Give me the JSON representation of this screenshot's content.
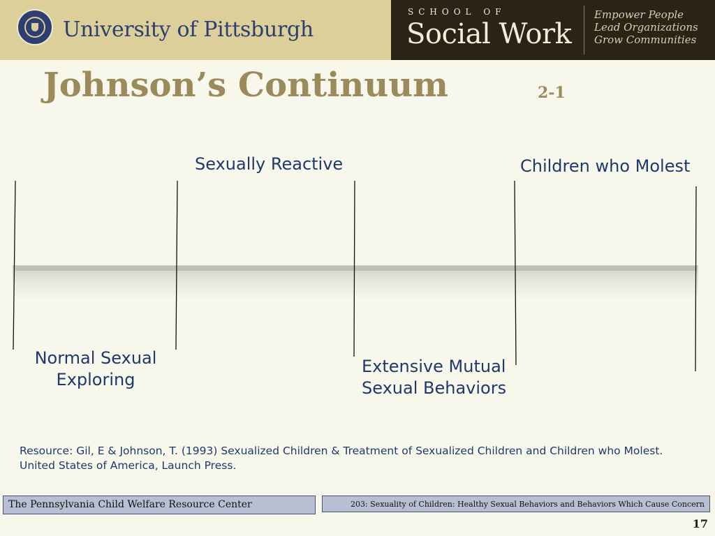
{
  "header": {
    "university": "University of Pittsburgh",
    "school_prefix": "SCHOOL OF",
    "school_name": "Social Work",
    "tagline": [
      "Empower People",
      "Lead Organizations",
      "Grow Communities"
    ]
  },
  "slide": {
    "title": "Johnson’s Continuum",
    "code": "2-1",
    "page_number": "17"
  },
  "continuum": {
    "labels": {
      "normal": [
        "Normal Sexual",
        "Exploring"
      ],
      "reactive": "Sexually Reactive",
      "mutual": [
        "Extensive Mutual",
        "Sexual Behaviors"
      ],
      "molest": "Children who Molest"
    }
  },
  "resource": {
    "line1": "Resource:  Gil, E & Johnson, T. (1993) Sexualized Children & Treatment of Sexualized Children and Children who Molest.",
    "line2": "United States of America, Launch Press."
  },
  "footer": {
    "left": "The Pennsylvania Child Welfare Resource Center",
    "right": "203: Sexuality of Children: Healthy Sexual Behaviors and Behaviors Which Cause Concern"
  },
  "colors": {
    "header_gold": "#dccf9a",
    "header_dark": "#2a2416",
    "title_gold": "#9b8a5a",
    "label_blue": "#1f3a6a",
    "footer_box": "#b8bfd2"
  }
}
